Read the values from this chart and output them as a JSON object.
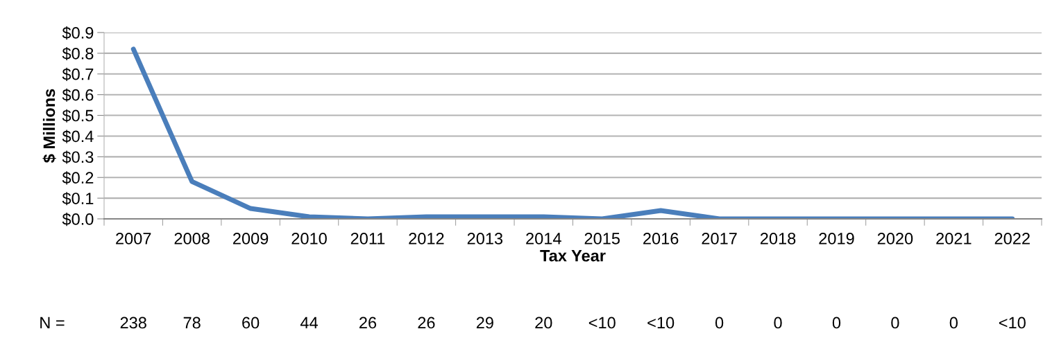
{
  "chart_data": {
    "type": "line",
    "xlabel": "Tax Year",
    "ylabel": "$ Millions",
    "categories": [
      "2007",
      "2008",
      "2009",
      "2010",
      "2011",
      "2012",
      "2013",
      "2014",
      "2015",
      "2016",
      "2017",
      "2018",
      "2019",
      "2020",
      "2021",
      "2022"
    ],
    "series": [
      {
        "color": "#4a7ebb",
        "values": [
          0.82,
          0.18,
          0.05,
          0.01,
          0.0,
          0.01,
          0.01,
          0.01,
          0.0,
          0.04,
          0,
          0,
          0,
          0,
          0,
          0
        ]
      }
    ],
    "ylim": [
      0,
      0.9
    ],
    "yticks": [
      {
        "value": 0,
        "label": "$0.0"
      },
      {
        "value": 0.1,
        "label": "$0.1"
      },
      {
        "value": 0.2,
        "label": "$0.2"
      },
      {
        "value": 0.3,
        "label": "$0.3"
      },
      {
        "value": 0.4,
        "label": "$0.4"
      },
      {
        "value": 0.5,
        "label": "$0.5"
      },
      {
        "value": 0.6,
        "label": "$0.6"
      },
      {
        "value": 0.7,
        "label": "$0.7"
      },
      {
        "value": 0.8,
        "label": "$0.8"
      },
      {
        "value": 0.9,
        "label": "$0.9"
      }
    ],
    "grid": "y",
    "legend": false,
    "marker": "none",
    "line_style": "solid",
    "annotations": [
      "N =",
      "238",
      "78",
      "60",
      "44",
      "26",
      "26",
      "29",
      "20",
      "<10",
      "<10",
      "0",
      "0",
      "0",
      "0",
      "0",
      "<10"
    ]
  }
}
